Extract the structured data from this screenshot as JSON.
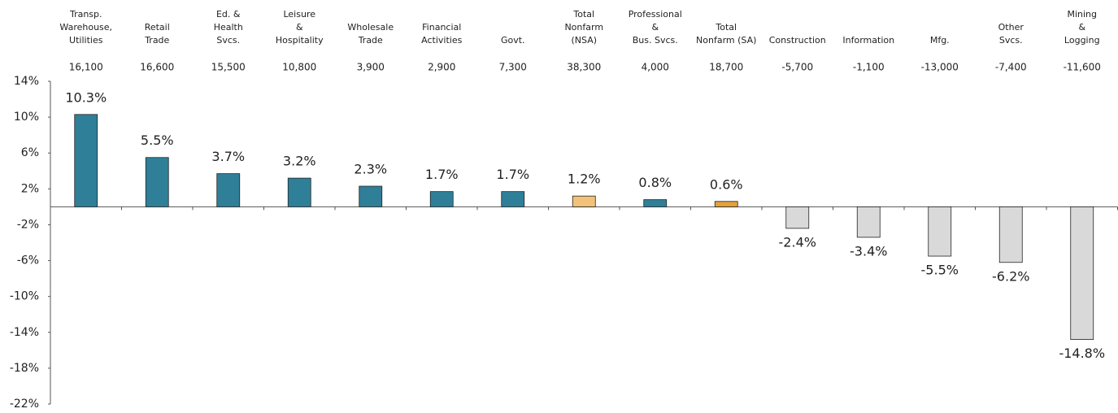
{
  "chart_data": {
    "type": "bar",
    "categories": [
      [
        "Transp.",
        "Warehouse,",
        "Utilities"
      ],
      [
        "Retail",
        "Trade"
      ],
      [
        "Ed. &",
        "Health",
        "Svcs."
      ],
      [
        "Leisure",
        "&",
        "Hospitality"
      ],
      [
        "Wholesale",
        "Trade"
      ],
      [
        "Financial",
        "Activities"
      ],
      [
        "Govt."
      ],
      [
        "Total",
        "Nonfarm",
        "(NSA)"
      ],
      [
        "Professional",
        "&",
        "Bus. Svcs."
      ],
      [
        "Total",
        "Nonfarm (SA)"
      ],
      [
        "Construction"
      ],
      [
        "Information"
      ],
      [
        "Mfg."
      ],
      [
        "Other",
        "Svcs."
      ],
      [
        "Mining",
        "&",
        "Logging"
      ]
    ],
    "change_labels": [
      "16,100",
      "16,600",
      "15,500",
      "10,800",
      "3,900",
      "2,900",
      "7,300",
      "38,300",
      "4,000",
      "18,700",
      "-5,700",
      "-1,100",
      "-13,000",
      "-7,400",
      "-11,600"
    ],
    "values": [
      10.3,
      5.5,
      3.7,
      3.2,
      2.3,
      1.7,
      1.7,
      1.2,
      0.8,
      0.6,
      -2.4,
      -3.4,
      -5.5,
      -6.2,
      -14.8
    ],
    "value_labels": [
      "10.3%",
      "5.5%",
      "3.7%",
      "3.2%",
      "2.3%",
      "1.7%",
      "1.7%",
      "1.2%",
      "0.8%",
      "0.6%",
      "-2.4%",
      "-3.4%",
      "-5.5%",
      "-6.2%",
      "-14.8%"
    ],
    "colors": [
      "#2f7f98",
      "#2f7f98",
      "#2f7f98",
      "#2f7f98",
      "#2f7f98",
      "#2f7f98",
      "#2f7f98",
      "#f2c27a",
      "#2f7f98",
      "#e3a23a",
      "#d9d9d9",
      "#d9d9d9",
      "#d9d9d9",
      "#d9d9d9",
      "#d9d9d9"
    ],
    "ylim": [
      -22,
      14
    ],
    "yticks": [
      {
        "value": 14,
        "label": "14%"
      },
      {
        "value": 10,
        "label": "10%"
      },
      {
        "value": 6,
        "label": "6%"
      },
      {
        "value": 2,
        "label": "2%"
      },
      {
        "value": -2,
        "label": "-2%"
      },
      {
        "value": -6,
        "label": "-6%"
      },
      {
        "value": -10,
        "label": "-10%"
      },
      {
        "value": -14,
        "label": "-14%"
      },
      {
        "value": -18,
        "label": "-18%"
      },
      {
        "value": -22,
        "label": "-22%"
      }
    ]
  }
}
